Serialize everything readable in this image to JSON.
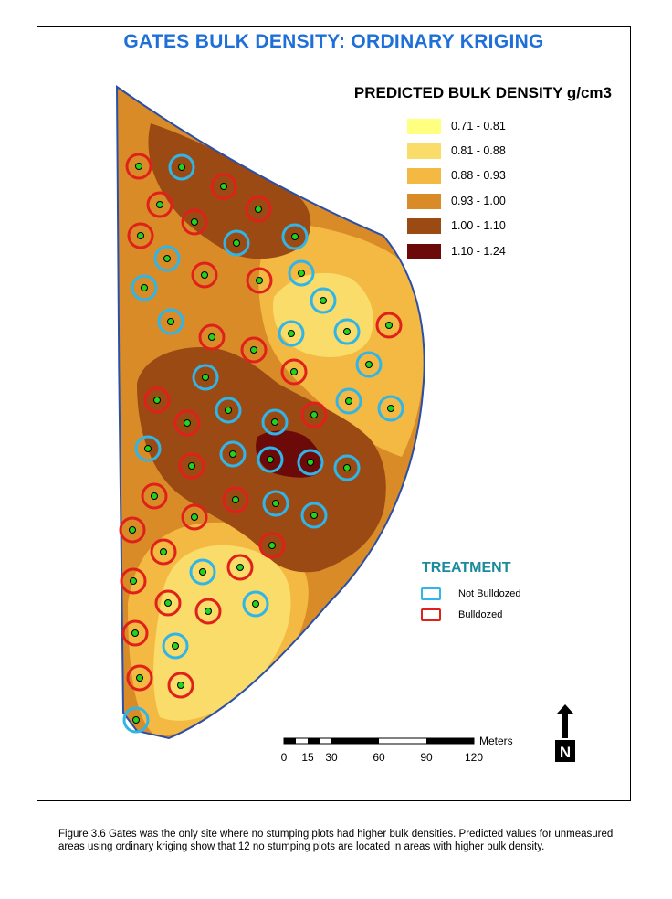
{
  "title": "GATES BULK DENSITY: ORDINARY KRIGING",
  "legend": {
    "title": "PREDICTED BULK DENSITY g/cm3",
    "classes": [
      {
        "label": "0.71 - 0.81",
        "color": "#ffff80"
      },
      {
        "label": "0.81 - 0.88",
        "color": "#f9dc6a"
      },
      {
        "label": "0.88 - 0.93",
        "color": "#f4b942"
      },
      {
        "label": "0.93 - 1.00",
        "color": "#d98b28"
      },
      {
        "label": "1.00 - 1.10",
        "color": "#9c4a14"
      },
      {
        "label": "1.10 - 1.24",
        "color": "#6b0a08"
      }
    ]
  },
  "treatment": {
    "title": "TREATMENT",
    "items": [
      {
        "label": "Not Bulldozed",
        "color": "#2fb5e8"
      },
      {
        "label": "Bulldozed",
        "color": "#e0201a"
      }
    ]
  },
  "scale_bar": {
    "unit": "Meters",
    "ticks": [
      "0",
      "15",
      "30",
      "60",
      "90",
      "120"
    ]
  },
  "north_arrow": {
    "label": "N"
  },
  "caption": {
    "line1": "Figure 3.6  Gates was the only site where no stumping plots had higher bulk densities.   Predicted values for unmeasured",
    "line2": "areas using ordinary kriging show that 12 no stumping plots are located in areas with higher bulk density."
  },
  "colors": {
    "title": "#1f6fd8",
    "boundary": "#2a4fa8",
    "plot_center": "#22d41e",
    "not_bulldozed": "#2fb5e8",
    "bulldozed": "#e0201a"
  }
}
